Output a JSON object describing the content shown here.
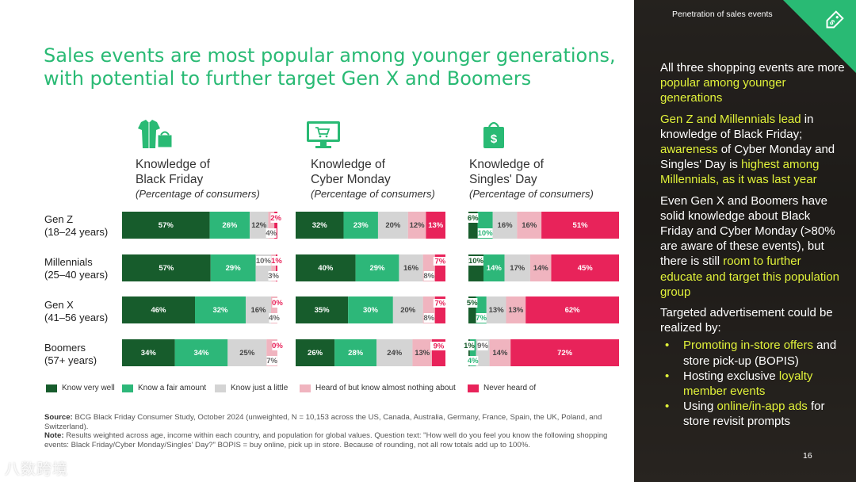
{
  "title": "Sales events are most popular among younger generations, with potential to further target Gen X and Boomers",
  "panels": [
    {
      "title": "Knowledge of\nBlack Friday",
      "subtitle": "(Percentage of consumers)",
      "icon": "clothes-shopping-bag-icon"
    },
    {
      "title": "Knowledge of\nCyber Monday",
      "subtitle": "(Percentage of consumers)",
      "icon": "computer-cart-icon"
    },
    {
      "title": "Knowledge of\nSingles' Day",
      "subtitle": "(Percentage of consumers)",
      "icon": "dollar-shopping-bag-icon"
    }
  ],
  "row_labels": [
    "Gen Z\n(18–24 years)",
    "Millennials\n(25–40 years)",
    "Gen X\n(41–56 years)",
    "Boomers\n(57+ years)"
  ],
  "legend": [
    "Know very well",
    "Know a fair amount",
    "Know just a little",
    "Heard of but know almost nothing about",
    "Never heard of"
  ],
  "colors": [
    "#175c2c",
    "#2db779",
    "#d4d4d4",
    "#f0b4bf",
    "#e8235a"
  ],
  "chart_data": [
    {
      "type": "bar",
      "title": "Knowledge of Black Friday",
      "subtitle": "(Percentage of consumers)",
      "categories": [
        "Gen Z (18–24 years)",
        "Millennials (25–40 years)",
        "Gen X (41–56 years)",
        "Boomers (57+ years)"
      ],
      "series": [
        {
          "name": "Know very well",
          "values": [
            57,
            57,
            46,
            34
          ]
        },
        {
          "name": "Know a fair amount",
          "values": [
            26,
            29,
            32,
            34
          ]
        },
        {
          "name": "Know just a little",
          "values": [
            12,
            10,
            16,
            25
          ]
        },
        {
          "name": "Heard of but know almost nothing about",
          "values": [
            4,
            3,
            4,
            7
          ]
        },
        {
          "name": "Never heard of",
          "values": [
            2,
            1,
            0,
            0
          ]
        }
      ]
    },
    {
      "type": "bar",
      "title": "Knowledge of Cyber Monday",
      "subtitle": "(Percentage of consumers)",
      "categories": [
        "Gen Z (18–24 years)",
        "Millennials (25–40 years)",
        "Gen X (41–56 years)",
        "Boomers (57+ years)"
      ],
      "series": [
        {
          "name": "Know very well",
          "values": [
            32,
            40,
            35,
            26
          ]
        },
        {
          "name": "Know a fair amount",
          "values": [
            23,
            29,
            30,
            28
          ]
        },
        {
          "name": "Know just a little",
          "values": [
            20,
            16,
            20,
            24
          ]
        },
        {
          "name": "Heard of but know almost nothing about",
          "values": [
            12,
            8,
            8,
            13
          ]
        },
        {
          "name": "Never heard of",
          "values": [
            13,
            7,
            7,
            9
          ]
        }
      ]
    },
    {
      "type": "bar",
      "title": "Knowledge of Singles' Day",
      "subtitle": "(Percentage of consumers)",
      "categories": [
        "Gen Z (18–24 years)",
        "Millennials (25–40 years)",
        "Gen X (41–56 years)",
        "Boomers (57+ years)"
      ],
      "series": [
        {
          "name": "Know very well",
          "values": [
            6,
            10,
            5,
            1
          ]
        },
        {
          "name": "Know a fair amount",
          "values": [
            10,
            14,
            7,
            4
          ]
        },
        {
          "name": "Know just a little",
          "values": [
            16,
            17,
            13,
            9
          ]
        },
        {
          "name": "Heard of but know almost nothing about",
          "values": [
            16,
            14,
            13,
            14
          ]
        },
        {
          "name": "Never heard of",
          "values": [
            51,
            45,
            62,
            72
          ]
        }
      ]
    }
  ],
  "footnote": {
    "source_label": "Source:",
    "source_text": "BCG Black Friday Consumer Study, October 2024 (unweighted, N = 10,153 across the US, Canada, Australia, Germany, France, Spain, the UK, Poland, and Switzerland).",
    "note_label": "Note:",
    "note_text": "Results weighted across age, income within each country, and population for global values. Question text: \"How well do you feel you know the following shopping events: Black Friday/Cyber Monday/Singles' Day?\" BOPIS = buy online, pick up in store. Because of rounding, not all row totals add up to 100%."
  },
  "sidebar": {
    "header": "Penetration of sales events",
    "p1_a": "All three shopping events are more ",
    "p1_hl": "popular among younger generations",
    "p2_hl1": "Gen Z and Millennials lead",
    "p2_a": " in knowledge of Black Friday; ",
    "p2_hl2": "awareness",
    "p2_b": " of Cyber Monday and Singles' Day is ",
    "p2_hl3": "highest among Millennials, as it was last year",
    "p3_a": "Even Gen X and Boomers have solid knowledge about Black Friday and Cyber Monday (>80% are aware of these events), but there is still ",
    "p3_hl": "room to further educate and target this population group",
    "p4": "Targeted advertisement could be realized by:",
    "b1_hl": "Promoting in-store offers",
    "b1_a": " and store pick-up (BOPIS)",
    "b2_a": "Hosting exclusive ",
    "b2_hl": "loyalty member events",
    "b3_a": "Using ",
    "b3_hl": "online/in-app ads",
    "b3_b": " for store revisit prompts",
    "page_number": "16",
    "icon": "price-tag-icon"
  },
  "watermark": "八数跨境"
}
